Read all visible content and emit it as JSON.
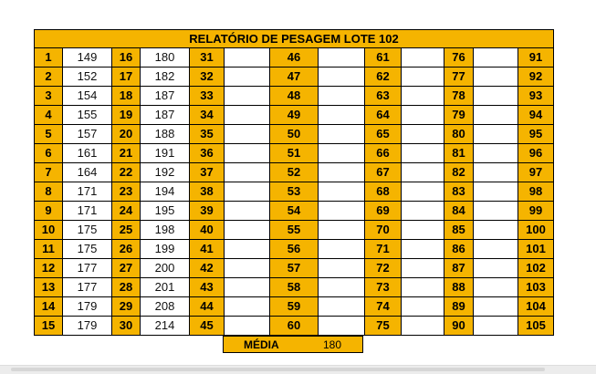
{
  "report": {
    "title": "RELATÓRIO DE PESAGEM LOTE 102",
    "rows": [
      [
        {
          "n": "1",
          "v": "149"
        },
        {
          "n": "16",
          "v": "180"
        },
        {
          "n": "31",
          "v": ""
        },
        {
          "n": "46",
          "v": ""
        },
        {
          "n": "61",
          "v": ""
        },
        {
          "n": "76",
          "v": ""
        },
        {
          "n": "91"
        }
      ],
      [
        {
          "n": "2",
          "v": "152"
        },
        {
          "n": "17",
          "v": "182"
        },
        {
          "n": "32",
          "v": ""
        },
        {
          "n": "47",
          "v": ""
        },
        {
          "n": "62",
          "v": ""
        },
        {
          "n": "77",
          "v": ""
        },
        {
          "n": "92"
        }
      ],
      [
        {
          "n": "3",
          "v": "154"
        },
        {
          "n": "18",
          "v": "187"
        },
        {
          "n": "33",
          "v": ""
        },
        {
          "n": "48",
          "v": ""
        },
        {
          "n": "63",
          "v": ""
        },
        {
          "n": "78",
          "v": ""
        },
        {
          "n": "93"
        }
      ],
      [
        {
          "n": "4",
          "v": "155"
        },
        {
          "n": "19",
          "v": "187"
        },
        {
          "n": "34",
          "v": ""
        },
        {
          "n": "49",
          "v": ""
        },
        {
          "n": "64",
          "v": ""
        },
        {
          "n": "79",
          "v": ""
        },
        {
          "n": "94"
        }
      ],
      [
        {
          "n": "5",
          "v": "157"
        },
        {
          "n": "20",
          "v": "188"
        },
        {
          "n": "35",
          "v": ""
        },
        {
          "n": "50",
          "v": ""
        },
        {
          "n": "65",
          "v": ""
        },
        {
          "n": "80",
          "v": ""
        },
        {
          "n": "95"
        }
      ],
      [
        {
          "n": "6",
          "v": "161"
        },
        {
          "n": "21",
          "v": "191"
        },
        {
          "n": "36",
          "v": ""
        },
        {
          "n": "51",
          "v": ""
        },
        {
          "n": "66",
          "v": ""
        },
        {
          "n": "81",
          "v": ""
        },
        {
          "n": "96"
        }
      ],
      [
        {
          "n": "7",
          "v": "164"
        },
        {
          "n": "22",
          "v": "192"
        },
        {
          "n": "37",
          "v": ""
        },
        {
          "n": "52",
          "v": ""
        },
        {
          "n": "67",
          "v": ""
        },
        {
          "n": "82",
          "v": ""
        },
        {
          "n": "97"
        }
      ],
      [
        {
          "n": "8",
          "v": "171"
        },
        {
          "n": "23",
          "v": "194"
        },
        {
          "n": "38",
          "v": ""
        },
        {
          "n": "53",
          "v": ""
        },
        {
          "n": "68",
          "v": ""
        },
        {
          "n": "83",
          "v": ""
        },
        {
          "n": "98"
        }
      ],
      [
        {
          "n": "9",
          "v": "171"
        },
        {
          "n": "24",
          "v": "195"
        },
        {
          "n": "39",
          "v": ""
        },
        {
          "n": "54",
          "v": ""
        },
        {
          "n": "69",
          "v": ""
        },
        {
          "n": "84",
          "v": ""
        },
        {
          "n": "99"
        }
      ],
      [
        {
          "n": "10",
          "v": "175"
        },
        {
          "n": "25",
          "v": "198"
        },
        {
          "n": "40",
          "v": ""
        },
        {
          "n": "55",
          "v": ""
        },
        {
          "n": "70",
          "v": ""
        },
        {
          "n": "85",
          "v": ""
        },
        {
          "n": "100"
        }
      ],
      [
        {
          "n": "11",
          "v": "175"
        },
        {
          "n": "26",
          "v": "199"
        },
        {
          "n": "41",
          "v": ""
        },
        {
          "n": "56",
          "v": ""
        },
        {
          "n": "71",
          "v": ""
        },
        {
          "n": "86",
          "v": ""
        },
        {
          "n": "101"
        }
      ],
      [
        {
          "n": "12",
          "v": "177"
        },
        {
          "n": "27",
          "v": "200"
        },
        {
          "n": "42",
          "v": ""
        },
        {
          "n": "57",
          "v": ""
        },
        {
          "n": "72",
          "v": ""
        },
        {
          "n": "87",
          "v": ""
        },
        {
          "n": "102"
        }
      ],
      [
        {
          "n": "13",
          "v": "177"
        },
        {
          "n": "28",
          "v": "201"
        },
        {
          "n": "43",
          "v": ""
        },
        {
          "n": "58",
          "v": ""
        },
        {
          "n": "73",
          "v": ""
        },
        {
          "n": "88",
          "v": ""
        },
        {
          "n": "103"
        }
      ],
      [
        {
          "n": "14",
          "v": "179"
        },
        {
          "n": "29",
          "v": "208"
        },
        {
          "n": "44",
          "v": ""
        },
        {
          "n": "59",
          "v": ""
        },
        {
          "n": "74",
          "v": ""
        },
        {
          "n": "89",
          "v": ""
        },
        {
          "n": "104"
        }
      ],
      [
        {
          "n": "15",
          "v": "179"
        },
        {
          "n": "30",
          "v": "214"
        },
        {
          "n": "45",
          "v": ""
        },
        {
          "n": "60",
          "v": ""
        },
        {
          "n": "75",
          "v": ""
        },
        {
          "n": "90",
          "v": ""
        },
        {
          "n": "105"
        }
      ]
    ],
    "summary": {
      "label": "MÉDIA",
      "value": "180"
    }
  },
  "colors": {
    "header_fill": "#f5b400",
    "value_fill": "#ffffff",
    "border": "#000000"
  }
}
